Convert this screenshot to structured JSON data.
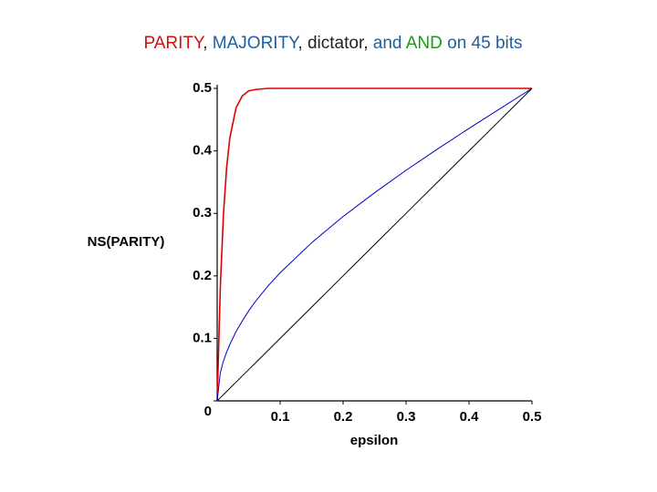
{
  "chart_data": {
    "type": "line",
    "title_parts": [
      {
        "text": "PARITY",
        "color": "#cc1111"
      },
      {
        "text": ", ",
        "color": "#222222"
      },
      {
        "text": "MAJORITY",
        "color": "#1f5fa0"
      },
      {
        "text": ", dictator, ",
        "color": "#222222"
      },
      {
        "text": "and ",
        "color": "#1f5fa0"
      },
      {
        "text": "AND",
        "color": "#1a9a1a"
      },
      {
        "text": " on 45 bits",
        "color": "#1f5fa0"
      }
    ],
    "xlabel": "epsilon",
    "ylabel": "NS(PARITY)",
    "x": [
      0,
      0.005,
      0.01,
      0.015,
      0.02,
      0.03,
      0.04,
      0.05,
      0.06,
      0.08,
      0.1,
      0.15,
      0.2,
      0.25,
      0.3,
      0.35,
      0.4,
      0.45,
      0.5
    ],
    "series": [
      {
        "name": "PARITY",
        "color": "#dd0000",
        "values": [
          0,
          0.182,
          0.299,
          0.373,
          0.42,
          0.469,
          0.488,
          0.496,
          0.498,
          0.5,
          0.5,
          0.5,
          0.5,
          0.5,
          0.5,
          0.5,
          0.5,
          0.5,
          0.5
        ]
      },
      {
        "name": "MAJORITY",
        "color": "#0000cc",
        "values": [
          0,
          0.045,
          0.064,
          0.078,
          0.09,
          0.111,
          0.128,
          0.144,
          0.158,
          0.183,
          0.205,
          0.253,
          0.295,
          0.333,
          0.369,
          0.403,
          0.436,
          0.468,
          0.5
        ]
      },
      {
        "name": "dictator",
        "color": "#000000",
        "values": [
          0,
          0.005,
          0.01,
          0.015,
          0.02,
          0.03,
          0.04,
          0.05,
          0.06,
          0.08,
          0.1,
          0.15,
          0.2,
          0.25,
          0.3,
          0.35,
          0.4,
          0.45,
          0.5
        ]
      }
    ],
    "xlim": [
      0,
      0.5
    ],
    "ylim": [
      0,
      0.5
    ],
    "xticks": [
      0.1,
      0.2,
      0.3,
      0.4,
      0.5
    ],
    "yticks": [
      0,
      0.1,
      0.2,
      0.3,
      0.4,
      0.5
    ]
  }
}
